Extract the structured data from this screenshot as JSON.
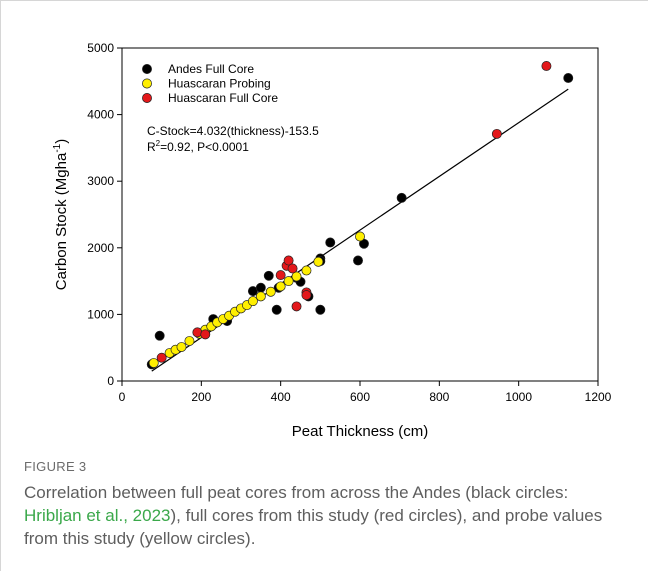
{
  "chart_data": {
    "type": "scatter",
    "xlabel": "Peat Thickness (cm)",
    "ylabel": "Carbon Stock (Mgha",
    "ylabel_sup": "-1",
    "ylabel_close": ")",
    "xlim": [
      0,
      1200
    ],
    "ylim": [
      0,
      5000
    ],
    "xticks": [
      0,
      200,
      400,
      600,
      800,
      1000,
      1200
    ],
    "yticks": [
      0,
      1000,
      2000,
      3000,
      4000,
      5000
    ],
    "grid": false,
    "legend_placement": "top-left",
    "annotation": {
      "line1": "C-Stock=4.032(thickness)-153.5",
      "line2_pre": "R",
      "line2_sup": "2",
      "line2_post": "=0.92, P<0.0001"
    },
    "fit": {
      "slope": 4.032,
      "intercept": -153.5,
      "x_range": [
        75,
        1125
      ]
    },
    "series": [
      {
        "name": "Andes Full Core",
        "color": "#000000",
        "points": [
          [
            75,
            250
          ],
          [
            95,
            680
          ],
          [
            230,
            930
          ],
          [
            265,
            900
          ],
          [
            330,
            1350
          ],
          [
            350,
            1400
          ],
          [
            370,
            1580
          ],
          [
            390,
            1070
          ],
          [
            395,
            1400
          ],
          [
            440,
            1550
          ],
          [
            450,
            1490
          ],
          [
            470,
            1270
          ],
          [
            500,
            1840
          ],
          [
            500,
            1800
          ],
          [
            500,
            1070
          ],
          [
            525,
            2080
          ],
          [
            595,
            1810
          ],
          [
            610,
            2060
          ],
          [
            705,
            2750
          ],
          [
            1125,
            4550
          ]
        ]
      },
      {
        "name": "Huascaran Probing",
        "color": "#ffef00",
        "points": [
          [
            80,
            270
          ],
          [
            120,
            420
          ],
          [
            135,
            470
          ],
          [
            150,
            510
          ],
          [
            170,
            600
          ],
          [
            195,
            710
          ],
          [
            210,
            770
          ],
          [
            225,
            820
          ],
          [
            240,
            880
          ],
          [
            255,
            930
          ],
          [
            270,
            980
          ],
          [
            285,
            1040
          ],
          [
            300,
            1090
          ],
          [
            315,
            1140
          ],
          [
            330,
            1200
          ],
          [
            350,
            1270
          ],
          [
            375,
            1340
          ],
          [
            400,
            1420
          ],
          [
            420,
            1500
          ],
          [
            440,
            1570
          ],
          [
            465,
            1660
          ],
          [
            495,
            1790
          ],
          [
            600,
            2170
          ]
        ]
      },
      {
        "name": "Huascaran Full Core",
        "color": "#e3181b",
        "points": [
          [
            100,
            350
          ],
          [
            190,
            730
          ],
          [
            210,
            700
          ],
          [
            400,
            1590
          ],
          [
            415,
            1730
          ],
          [
            420,
            1810
          ],
          [
            430,
            1690
          ],
          [
            440,
            1120
          ],
          [
            465,
            1330
          ],
          [
            465,
            1290
          ],
          [
            945,
            3710
          ],
          [
            1070,
            4730
          ]
        ]
      }
    ]
  },
  "caption": {
    "label": "FIGURE 3",
    "text_before": "Correlation between full peat cores from across the Andes (black circles: ",
    "citation": "Hribljan et al., 2023",
    "text_after": "), full cores from this study (red circles), and probe values from this study (yellow circles)."
  }
}
